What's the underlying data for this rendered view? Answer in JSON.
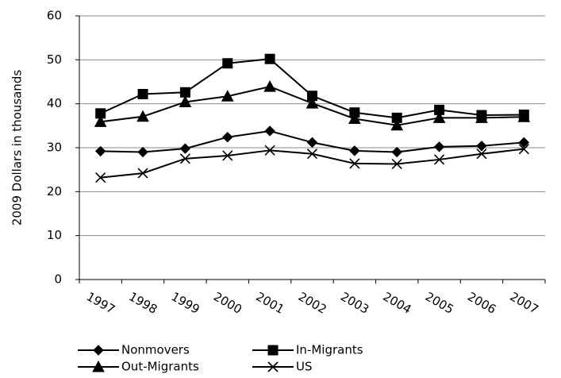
{
  "chart_data": {
    "type": "line",
    "ylabel": "2009 Dollars in thousands",
    "categories": [
      "1997",
      "1998",
      "1999",
      "2000",
      "2001",
      "2002",
      "2003",
      "2004",
      "2005",
      "2006",
      "2007"
    ],
    "series": [
      {
        "name": "Nonmovers",
        "color": "#000000",
        "marker": "diamond",
        "values": [
          29.2,
          29.0,
          29.8,
          32.4,
          33.8,
          31.2,
          29.3,
          29.0,
          30.2,
          30.4,
          31.2
        ]
      },
      {
        "name": "In-Migrants",
        "color": "#000000",
        "marker": "square",
        "values": [
          37.8,
          42.2,
          42.6,
          49.2,
          50.2,
          41.8,
          38.0,
          36.8,
          38.6,
          37.4,
          37.5
        ]
      },
      {
        "name": "Out-Migrants",
        "color": "#000000",
        "marker": "triangle",
        "values": [
          35.9,
          37.1,
          40.4,
          41.7,
          43.9,
          40.1,
          36.6,
          35.1,
          36.8,
          36.8,
          37.0
        ]
      },
      {
        "name": "US",
        "color": "#000000",
        "marker": "x",
        "values": [
          23.2,
          24.2,
          27.5,
          28.2,
          29.4,
          28.6,
          26.4,
          26.3,
          27.3,
          28.6,
          29.7
        ]
      }
    ],
    "ylim": [
      0,
      60
    ],
    "yticks": [
      0,
      10,
      20,
      30,
      40,
      50,
      60
    ],
    "grid": true
  }
}
